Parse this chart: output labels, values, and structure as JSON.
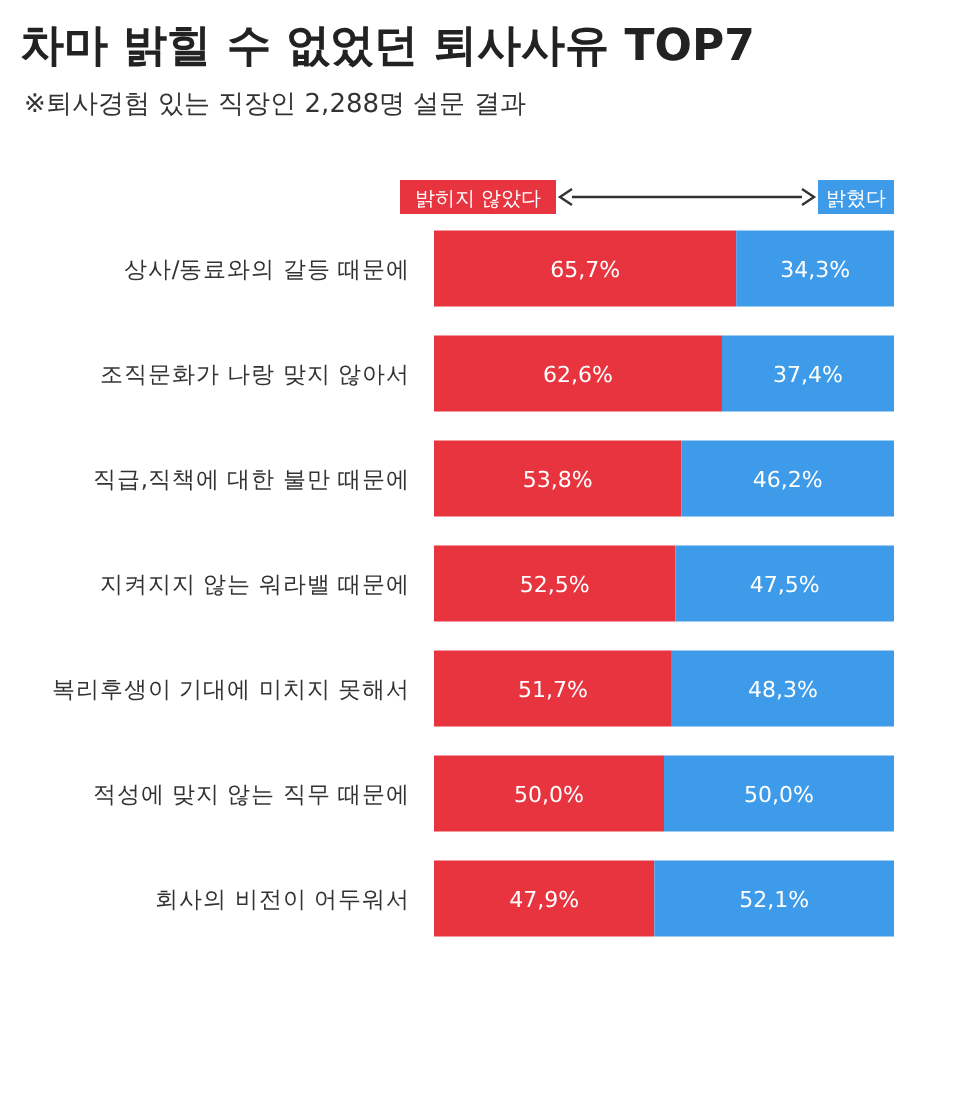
{
  "chart_data": {
    "type": "bar",
    "orientation": "horizontal",
    "stacked": true,
    "title": "차마 밝힐 수 없었던 퇴사사유 TOP7",
    "subtitle": "※퇴사경험 있는 직장인 2,288명 설문 결과",
    "categories": [
      "상사/동료와의 갈등 때문에",
      "조직문화가 나랑 맞지 않아서",
      "직급,직책에 대한 불만 때문에",
      "지켜지지 않는 워라밸 때문에",
      "복리후생이 기대에 미치지 못해서",
      "적성에 맞지 않는 직무 때문에",
      "회사의 비전이 어두워서"
    ],
    "series": [
      {
        "name": "밝히지 않았다",
        "color": "#e8343f",
        "values": [
          65.7,
          62.6,
          53.8,
          52.5,
          51.7,
          50.0,
          47.9
        ],
        "value_labels": [
          "65,7%",
          "62,6%",
          "53,8%",
          "52,5%",
          "51,7%",
          "50,0%",
          "47,9%"
        ]
      },
      {
        "name": "밝혔다",
        "color": "#3d9be9",
        "values": [
          34.3,
          37.4,
          46.2,
          47.5,
          48.3,
          50.0,
          52.1
        ],
        "value_labels": [
          "34,3%",
          "37,4%",
          "46,2%",
          "47,5%",
          "48,3%",
          "50,0%",
          "52,1%"
        ]
      }
    ],
    "legend": "top right"
  }
}
